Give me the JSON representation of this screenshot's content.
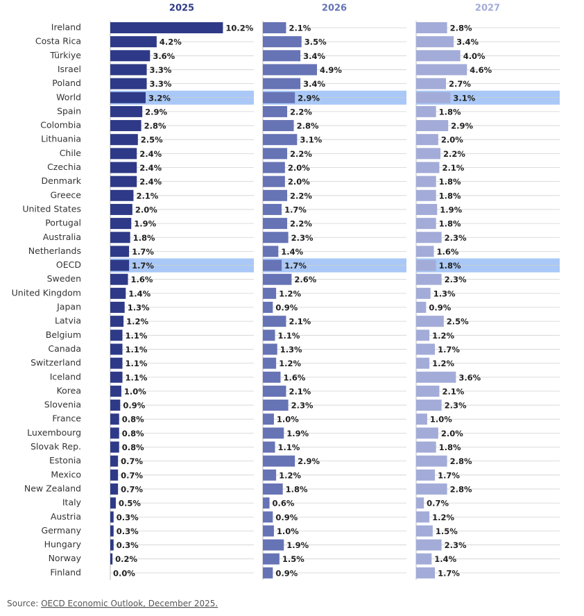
{
  "chart_data": {
    "type": "bar",
    "categories": [
      "Ireland",
      "Costa Rica",
      "Türkiye",
      "Israel",
      "Poland",
      "World",
      "Spain",
      "Colombia",
      "Lithuania",
      "Chile",
      "Czechia",
      "Denmark",
      "Greece",
      "United States",
      "Portugal",
      "Australia",
      "Netherlands",
      "OECD",
      "Sweden",
      "United Kingdom",
      "Japan",
      "Latvia",
      "Belgium",
      "Canada",
      "Switzerland",
      "Iceland",
      "Korea",
      "Slovenia",
      "France",
      "Luxembourg",
      "Slovak Rep.",
      "Estonia",
      "Mexico",
      "New Zealand",
      "Italy",
      "Austria",
      "Germany",
      "Hungary",
      "Norway",
      "Finland"
    ],
    "highlight": [
      "World",
      "OECD"
    ],
    "highlight_color": "#a9c8f7",
    "xlim": [
      0,
      13
    ],
    "series": [
      {
        "name": "2025",
        "color": "#2e3a87",
        "values": [
          10.2,
          4.2,
          3.6,
          3.3,
          3.3,
          3.2,
          2.9,
          2.8,
          2.5,
          2.4,
          2.4,
          2.4,
          2.1,
          2.0,
          1.9,
          1.8,
          1.7,
          1.7,
          1.6,
          1.4,
          1.3,
          1.2,
          1.1,
          1.1,
          1.1,
          1.1,
          1.0,
          0.9,
          0.8,
          0.8,
          0.8,
          0.7,
          0.7,
          0.7,
          0.5,
          0.3,
          0.3,
          0.3,
          0.2,
          0.0
        ],
        "value_labels": [
          "10.2%",
          "4.2%",
          "3.6%",
          "3.3%",
          "3.3%",
          "3.2%",
          "2.9%",
          "2.8%",
          "2.5%",
          "2.4%",
          "2.4%",
          "2.4%",
          "2.1%",
          "2.0%",
          "1.9%",
          "1.8%",
          "1.7%",
          "1.7%",
          "1.6%",
          "1.4%",
          "1.3%",
          "1.2%",
          "1.1%",
          "1.1%",
          "1.1%",
          "1.1%",
          "1.0%",
          "0.9%",
          "0.8%",
          "0.8%",
          "0.8%",
          "0.7%",
          "0.7%",
          "0.7%",
          "0.5%",
          "0.3%",
          "0.3%",
          "0.3%",
          "0.2%",
          "0.0%"
        ]
      },
      {
        "name": "2026",
        "color": "#6673b5",
        "values": [
          2.1,
          3.5,
          3.4,
          4.9,
          3.4,
          2.9,
          2.2,
          2.8,
          3.1,
          2.2,
          2.0,
          2.0,
          2.2,
          1.7,
          2.2,
          2.3,
          1.4,
          1.7,
          2.6,
          1.2,
          0.9,
          2.1,
          1.1,
          1.3,
          1.2,
          1.6,
          2.1,
          2.3,
          1.0,
          1.9,
          1.1,
          2.9,
          1.2,
          1.8,
          0.6,
          0.9,
          1.0,
          1.9,
          1.5,
          0.9
        ],
        "value_labels": [
          "2.1%",
          "3.5%",
          "3.4%",
          "4.9%",
          "3.4%",
          "2.9%",
          "2.2%",
          "2.8%",
          "3.1%",
          "2.2%",
          "2.0%",
          "2.0%",
          "2.2%",
          "1.7%",
          "2.2%",
          "2.3%",
          "1.4%",
          "1.7%",
          "2.6%",
          "1.2%",
          "0.9%",
          "2.1%",
          "1.1%",
          "1.3%",
          "1.2%",
          "1.6%",
          "2.1%",
          "2.3%",
          "1.0%",
          "1.9%",
          "1.1%",
          "2.9%",
          "1.2%",
          "1.8%",
          "0.6%",
          "0.9%",
          "1.0%",
          "1.9%",
          "1.5%",
          "0.9%"
        ]
      },
      {
        "name": "2027",
        "color": "#a3acd8",
        "values": [
          2.8,
          3.4,
          4.0,
          4.6,
          2.7,
          3.1,
          1.8,
          2.9,
          2.0,
          2.2,
          2.1,
          1.8,
          1.8,
          1.9,
          1.8,
          2.3,
          1.6,
          1.8,
          2.3,
          1.3,
          0.9,
          2.5,
          1.2,
          1.7,
          1.2,
          3.6,
          2.1,
          2.3,
          1.0,
          2.0,
          1.8,
          2.8,
          1.7,
          2.8,
          0.7,
          1.2,
          1.5,
          2.3,
          1.4,
          1.7
        ],
        "value_labels": [
          "2.8%",
          "3.4%",
          "4.0%",
          "4.6%",
          "2.7%",
          "3.1%",
          "1.8%",
          "2.9%",
          "2.0%",
          "2.2%",
          "2.1%",
          "1.8%",
          "1.8%",
          "1.9%",
          "1.8%",
          "2.3%",
          "1.6%",
          "1.8%",
          "2.3%",
          "1.3%",
          "0.9%",
          "2.5%",
          "1.2%",
          "1.7%",
          "1.2%",
          "3.6%",
          "2.1%",
          "2.3%",
          "1.0%",
          "2.0%",
          "1.8%",
          "2.8%",
          "1.7%",
          "2.8%",
          "0.7%",
          "1.2%",
          "1.5%",
          "2.3%",
          "1.4%",
          "1.7%"
        ]
      }
    ],
    "source_prefix": "Source: ",
    "source_link": "OECD Economic Outlook, December 2025."
  }
}
